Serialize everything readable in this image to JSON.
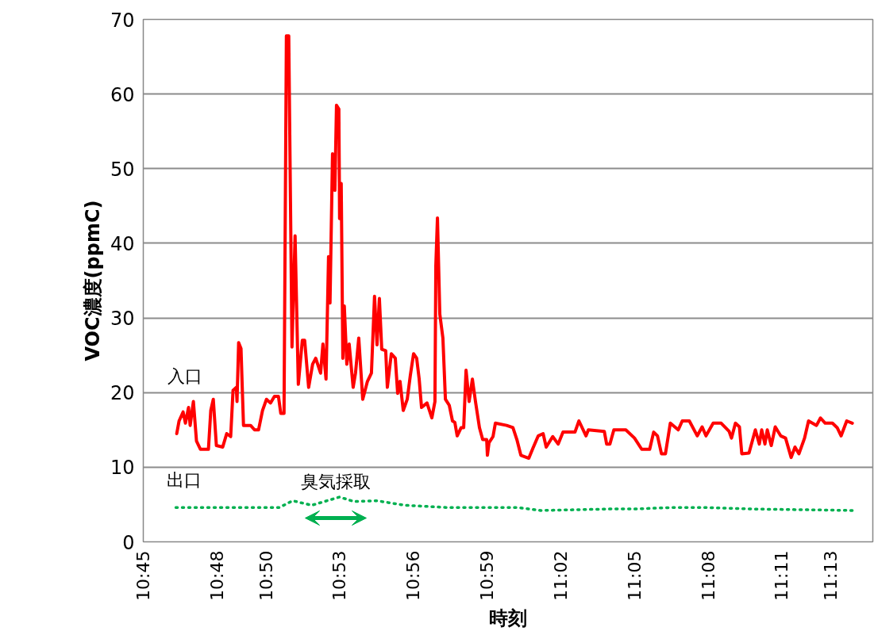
{
  "chart_data": {
    "type": "line",
    "xlabel": "時刻",
    "ylabel": "VOC濃度(ppmC)",
    "xlim": [
      10.75,
      11.245
    ],
    "ylim": [
      0,
      70
    ],
    "xticks": [
      {
        "value": 10.75,
        "label": "10:45"
      },
      {
        "value": 10.8,
        "label": "10:48"
      },
      {
        "value": 10.8333,
        "label": "10:50"
      },
      {
        "value": 10.8833,
        "label": "10:53"
      },
      {
        "value": 10.9333,
        "label": "10:56"
      },
      {
        "value": 10.9833,
        "label": "10:59"
      },
      {
        "value": 11.0333,
        "label": "11:02"
      },
      {
        "value": 11.0833,
        "label": "11:05"
      },
      {
        "value": 11.1333,
        "label": "11:08"
      },
      {
        "value": 11.1833,
        "label": "11:11"
      },
      {
        "value": 11.2167,
        "label": "11:13"
      }
    ],
    "yticks": [
      0,
      10,
      20,
      30,
      40,
      50,
      60,
      70
    ],
    "grid": "y",
    "marker": "none",
    "annotations": [
      "臭気採取"
    ],
    "series": [
      {
        "name": "入口",
        "color": "#ff0000",
        "line_style": "solid",
        "x": [
          10.7727,
          10.7743,
          10.777,
          10.7786,
          10.7807,
          10.7818,
          10.784,
          10.7861,
          10.7888,
          10.7942,
          10.7958,
          10.7975,
          10.7996,
          10.8039,
          10.8066,
          10.8093,
          10.8109,
          10.8131,
          10.8136,
          10.8147,
          10.8163,
          10.818,
          10.8228,
          10.8255,
          10.8282,
          10.8309,
          10.8336,
          10.8363,
          10.839,
          10.8417,
          10.8433,
          10.8455,
          10.8471,
          10.8487,
          10.8509,
          10.853,
          10.8552,
          10.8579,
          10.8595,
          10.8622,
          10.8649,
          10.867,
          10.8703,
          10.8719,
          10.874,
          10.8757,
          10.8767,
          10.8784,
          10.88,
          10.8811,
          10.8827,
          10.8832,
          10.8843,
          10.8854,
          10.8864,
          10.8881,
          10.8897,
          10.8924,
          10.894,
          10.8962,
          10.8989,
          10.9021,
          10.9048,
          10.9069,
          10.9086,
          10.9102,
          10.9118,
          10.9145,
          10.9156,
          10.9183,
          10.921,
          10.9226,
          10.9242,
          10.9264,
          10.9291,
          10.9312,
          10.9334,
          10.9355,
          10.9372,
          10.9388,
          10.9425,
          10.9458,
          10.9479,
          10.9485,
          10.9496,
          10.9512,
          10.9533,
          10.955,
          10.9576,
          10.9598,
          10.9614,
          10.963,
          10.9657,
          10.9674,
          10.969,
          10.9711,
          10.9733,
          10.9754,
          10.9781,
          10.9803,
          10.983,
          10.9835,
          10.9846,
          10.9873,
          10.9889,
          10.9965,
          11.0008,
          11.0035,
          11.0062,
          11.0116,
          11.0143,
          11.018,
          11.0213,
          11.0234,
          11.0278,
          11.0315,
          11.0348,
          11.0429,
          11.0456,
          11.0504,
          11.052,
          11.0628,
          11.0644,
          11.0666,
          11.0693,
          11.0774,
          11.0833,
          11.0882,
          11.0936,
          11.0963,
          11.0989,
          11.1016,
          11.1043,
          11.1076,
          11.113,
          11.1157,
          11.1205,
          11.1259,
          11.1292,
          11.1318,
          11.1367,
          11.1421,
          11.1475,
          11.1491,
          11.1518,
          11.1545,
          11.1561,
          11.161,
          11.1653,
          11.168,
          11.1696,
          11.1718,
          11.1734,
          11.1761,
          11.1788,
          11.1825,
          11.1858,
          11.1896,
          11.1922,
          11.1949,
          11.1987,
          11.2014,
          11.2068,
          11.2095,
          11.2127,
          11.2176,
          11.2208,
          11.2235,
          11.2273,
          11.2311
        ],
        "values": [
          14.5,
          16.2,
          17.4,
          15.9,
          18.0,
          15.6,
          18.8,
          13.5,
          12.4,
          12.4,
          17.6,
          19.1,
          12.9,
          12.7,
          14.5,
          14.1,
          20.3,
          20.7,
          18.8,
          26.7,
          25.9,
          15.6,
          15.6,
          15.0,
          15.0,
          17.6,
          19.1,
          18.6,
          19.5,
          19.5,
          17.2,
          17.2,
          67.8,
          67.8,
          26.1,
          41.0,
          21.1,
          27.0,
          27.0,
          20.7,
          23.8,
          24.6,
          22.6,
          26.5,
          21.8,
          38.2,
          32.0,
          52.0,
          47.1,
          58.5,
          58.0,
          43.3,
          48.0,
          24.6,
          31.6,
          23.8,
          26.5,
          20.7,
          22.6,
          27.3,
          19.1,
          21.5,
          22.6,
          32.9,
          26.4,
          32.6,
          25.8,
          25.6,
          20.7,
          25.2,
          24.6,
          19.9,
          21.5,
          17.6,
          19.1,
          22.3,
          25.2,
          24.6,
          21.8,
          18.0,
          18.6,
          16.6,
          18.8,
          37.0,
          43.4,
          30.5,
          27.3,
          19.1,
          18.3,
          16.2,
          16.0,
          14.2,
          15.3,
          15.3,
          23.0,
          18.8,
          21.8,
          18.8,
          15.3,
          13.7,
          13.7,
          11.6,
          13.3,
          14.1,
          15.9,
          15.6,
          15.3,
          13.7,
          11.6,
          11.2,
          12.5,
          14.2,
          14.5,
          12.7,
          14.1,
          13.1,
          14.7,
          14.7,
          16.2,
          14.2,
          15.0,
          14.8,
          13.1,
          13.1,
          15.0,
          15.0,
          13.9,
          12.4,
          12.4,
          14.7,
          14.2,
          11.8,
          11.8,
          15.9,
          15.0,
          16.2,
          16.2,
          14.2,
          15.4,
          14.2,
          15.9,
          15.9,
          14.8,
          13.9,
          15.9,
          15.4,
          11.8,
          11.9,
          15.0,
          13.1,
          15.0,
          13.1,
          15.0,
          12.9,
          15.4,
          14.2,
          13.9,
          11.3,
          12.7,
          11.8,
          13.9,
          16.2,
          15.6,
          16.6,
          15.9,
          15.9,
          15.3,
          14.2,
          16.2,
          15.9
        ]
      },
      {
        "name": "出口",
        "color": "#00b050",
        "line_style": "dotted",
        "x": [
          10.7721,
          10.8422,
          10.8514,
          10.8643,
          10.8832,
          10.8929,
          10.9086,
          10.9274,
          10.956,
          11.004,
          11.0197,
          11.0671,
          11.0833,
          11.1087,
          11.1308,
          11.1626,
          11.2322
        ],
        "values": [
          4.6,
          4.6,
          5.5,
          4.9,
          6.0,
          5.4,
          5.5,
          4.9,
          4.6,
          4.6,
          4.2,
          4.4,
          4.4,
          4.6,
          4.6,
          4.4,
          4.2
        ]
      }
    ]
  }
}
